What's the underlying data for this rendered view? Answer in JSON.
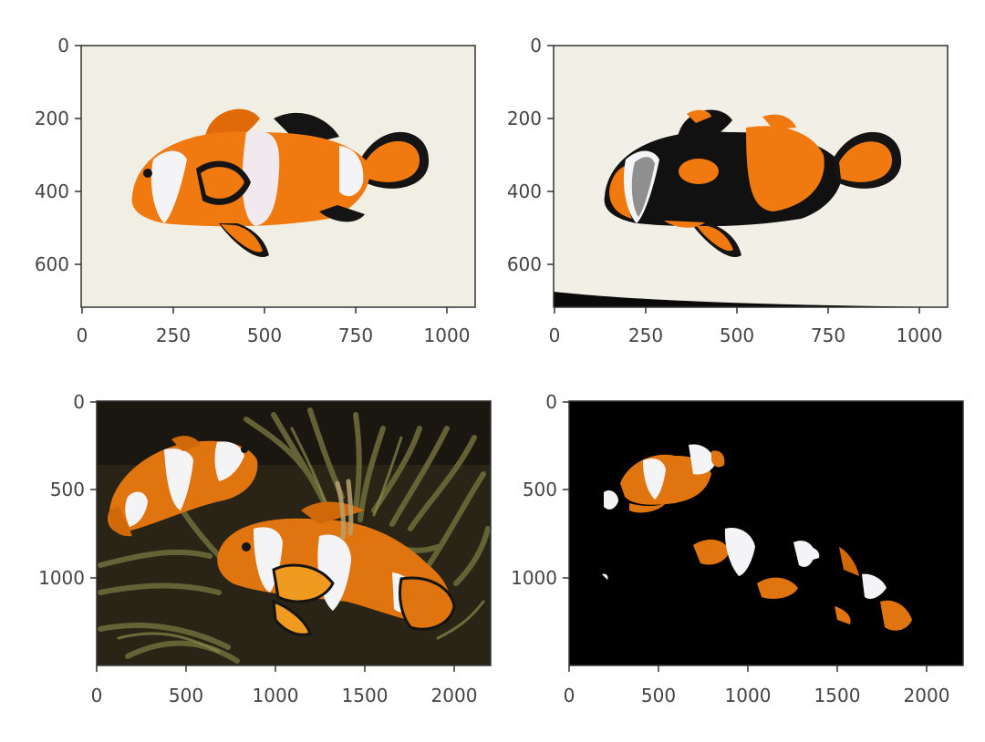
{
  "panels": [
    {
      "id": "top-left",
      "description_role": "original clownfish photo",
      "x_ticks": [
        "0",
        "250",
        "500",
        "750",
        "1000"
      ],
      "y_ticks": [
        "0",
        "200",
        "400",
        "600"
      ],
      "background": "#f1eee3"
    },
    {
      "id": "top-right",
      "description_role": "segmented clownfish (orange mask)",
      "x_ticks": [
        "0",
        "250",
        "500",
        "750",
        "1000"
      ],
      "y_ticks": [
        "0",
        "200",
        "400",
        "600"
      ],
      "background": "#f2efe6"
    },
    {
      "id": "bottom-left",
      "description_role": "clownfish in anemone photo",
      "x_ticks": [
        "0",
        "500",
        "1000",
        "1500",
        "2000"
      ],
      "y_ticks": [
        "0",
        "500",
        "1000"
      ],
      "background": "#2a2416"
    },
    {
      "id": "bottom-right",
      "description_role": "segmented clownfish in anemone (masked)",
      "x_ticks": [
        "0",
        "500",
        "1000",
        "1500",
        "2000"
      ],
      "y_ticks": [
        "0",
        "500",
        "1000"
      ],
      "background": "#000000"
    }
  ],
  "colors": {
    "orange": "#f07a10",
    "orange_dark": "#d85f05",
    "white_band": "#f4f4f6",
    "outline": "#141414",
    "axis": "#333333"
  }
}
